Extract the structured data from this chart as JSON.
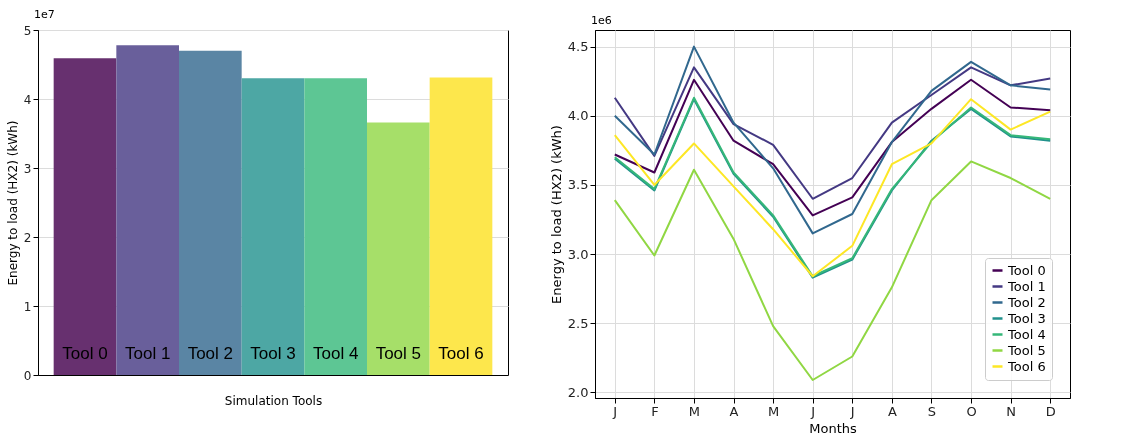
{
  "chart_data": [
    {
      "type": "bar",
      "categories": [
        "Tool 0",
        "Tool 1",
        "Tool 2",
        "Tool 3",
        "Tool 4",
        "Tool 5",
        "Tool 6"
      ],
      "values": [
        4.59,
        4.78,
        4.7,
        4.3,
        4.3,
        3.66,
        4.31
      ],
      "colors": [
        "#67306f",
        "#695f9b",
        "#5a85a4",
        "#4da7a4",
        "#5dc694",
        "#a6df69",
        "#fde74c"
      ],
      "ylim": [
        0,
        5
      ],
      "yticks": [
        0,
        1,
        2,
        3,
        4,
        5
      ],
      "xlabel": "Simulation Tools",
      "ylabel": "Energy to load (HX2) (kWh)",
      "annotations": [
        "1e7"
      ],
      "grid": "y"
    },
    {
      "type": "line",
      "categories": [
        "J",
        "F",
        "M",
        "A",
        "M",
        "J",
        "J",
        "A",
        "S",
        "O",
        "N",
        "D"
      ],
      "xlabel": "Months",
      "ylabel": "Energy to load (HX2) (kWh)",
      "annotations": [
        "1e6"
      ],
      "ylim": [
        1.96,
        4.62
      ],
      "yticks": [
        {
          "value": 2,
          "label": "2.0"
        },
        {
          "value": 2.5,
          "label": "2.5"
        },
        {
          "value": 3,
          "label": "3.0"
        },
        {
          "value": 3.5,
          "label": "3.5"
        },
        {
          "value": 4,
          "label": "4.0"
        },
        {
          "value": 4.5,
          "label": "4.5"
        }
      ],
      "grid": true,
      "legend": "bottom right",
      "series": [
        {
          "name": "Tool 0",
          "color": "#440154",
          "values": [
            3.72,
            3.59,
            4.26,
            3.82,
            3.65,
            3.28,
            3.41,
            3.81,
            4.05,
            4.26,
            4.06,
            4.04
          ]
        },
        {
          "name": "Tool 1",
          "color": "#443983",
          "values": [
            4.13,
            3.71,
            4.35,
            3.94,
            3.79,
            3.4,
            3.55,
            3.95,
            4.15,
            4.35,
            4.22,
            4.27
          ]
        },
        {
          "name": "Tool 2",
          "color": "#31688e",
          "values": [
            4.0,
            3.72,
            4.5,
            3.95,
            3.62,
            3.15,
            3.29,
            3.81,
            4.18,
            4.39,
            4.22,
            4.19
          ]
        },
        {
          "name": "Tool 3",
          "color": "#21918c",
          "values": [
            3.69,
            3.46,
            4.12,
            3.58,
            3.27,
            2.83,
            2.96,
            3.46,
            3.82,
            4.05,
            3.85,
            3.82
          ]
        },
        {
          "name": "Tool 4",
          "color": "#35b779",
          "values": [
            3.7,
            3.47,
            4.13,
            3.59,
            3.28,
            2.84,
            2.97,
            3.47,
            3.81,
            4.06,
            3.86,
            3.83
          ]
        },
        {
          "name": "Tool 5",
          "color": "#90d743",
          "values": [
            3.39,
            2.99,
            3.61,
            3.11,
            2.48,
            2.09,
            2.26,
            2.76,
            3.39,
            3.67,
            3.55,
            3.4
          ]
        },
        {
          "name": "Tool 6",
          "color": "#fde725",
          "values": [
            3.86,
            3.5,
            3.8,
            3.49,
            3.18,
            2.84,
            3.06,
            3.65,
            3.8,
            4.12,
            3.9,
            4.03
          ]
        }
      ]
    }
  ]
}
